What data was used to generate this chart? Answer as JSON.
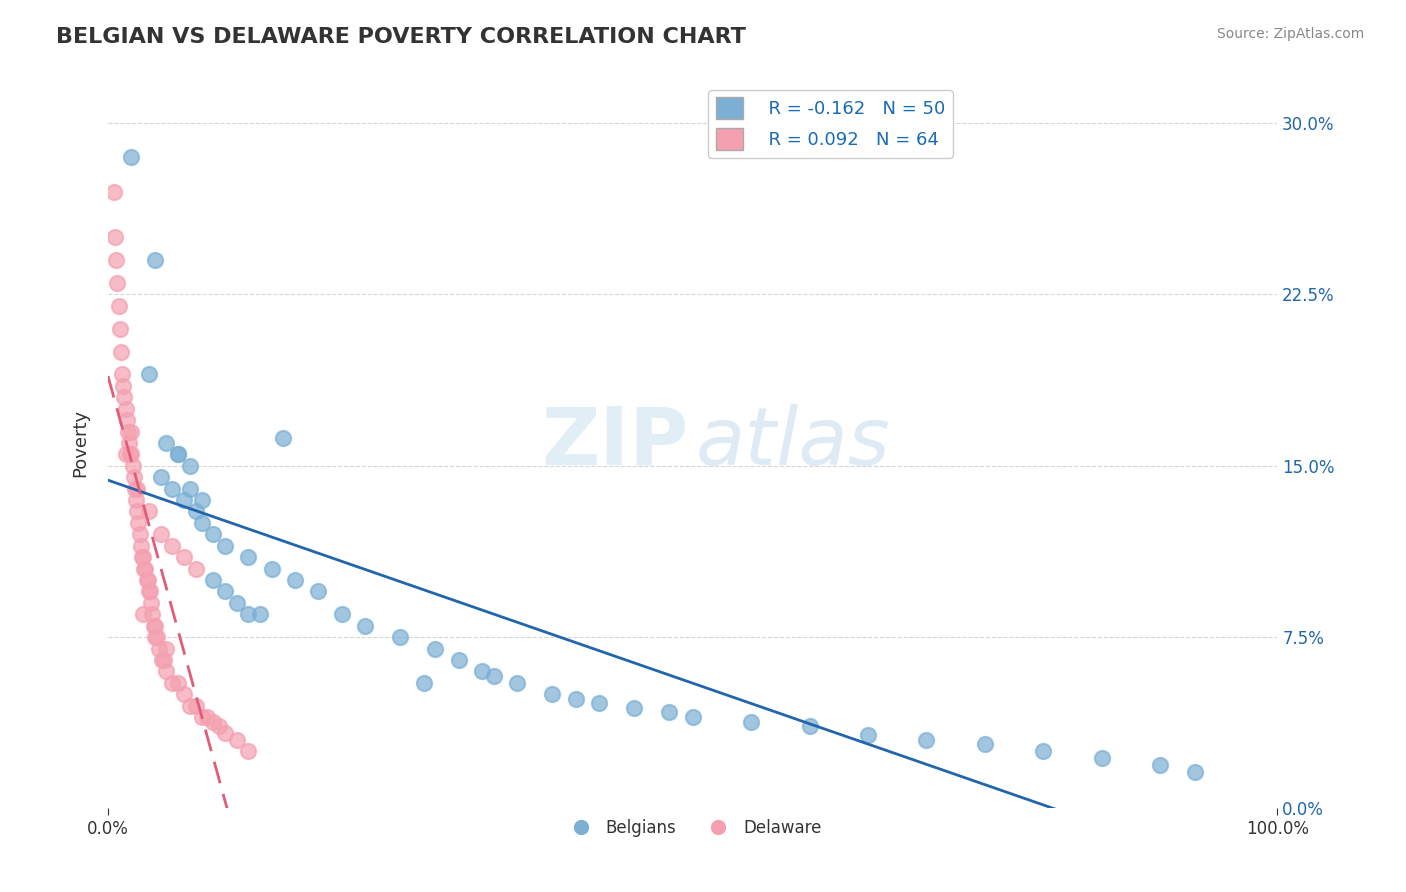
{
  "title": "BELGIAN VS DELAWARE POVERTY CORRELATION CHART",
  "source": "Source: ZipAtlas.com",
  "xlabel": "",
  "ylabel": "Poverty",
  "xlim": [
    0,
    1
  ],
  "ylim": [
    0,
    0.32
  ],
  "yticks": [
    0.0,
    0.075,
    0.15,
    0.225,
    0.3
  ],
  "ytick_labels": [
    "0.0%",
    "7.5%",
    "15.0%",
    "22.5%",
    "30.0%"
  ],
  "xticks": [
    0.0,
    1.0
  ],
  "xtick_labels": [
    "0.0%",
    "100.0%"
  ],
  "blue_color": "#7bafd4",
  "pink_color": "#f4a0b0",
  "blue_line_color": "#2166ac",
  "pink_line_color": "#e05c7a",
  "R_blue": -0.162,
  "N_blue": 50,
  "R_pink": 0.092,
  "N_pink": 64,
  "legend_label_blue": "Belgians",
  "legend_label_pink": "Delaware",
  "title_fontsize": 16,
  "blue_x": [
    0.02,
    0.04,
    0.035,
    0.05,
    0.06,
    0.07,
    0.045,
    0.055,
    0.065,
    0.075,
    0.08,
    0.09,
    0.1,
    0.12,
    0.14,
    0.16,
    0.06,
    0.07,
    0.08,
    0.09,
    0.1,
    0.11,
    0.12,
    0.13,
    0.2,
    0.22,
    0.25,
    0.28,
    0.3,
    0.32,
    0.35,
    0.38,
    0.4,
    0.42,
    0.45,
    0.48,
    0.5,
    0.55,
    0.6,
    0.65,
    0.7,
    0.75,
    0.8,
    0.85,
    0.9,
    0.93,
    0.33,
    0.18,
    0.27,
    0.15
  ],
  "blue_y": [
    0.285,
    0.24,
    0.19,
    0.16,
    0.155,
    0.15,
    0.145,
    0.14,
    0.135,
    0.13,
    0.125,
    0.12,
    0.115,
    0.11,
    0.105,
    0.1,
    0.155,
    0.14,
    0.135,
    0.1,
    0.095,
    0.09,
    0.085,
    0.085,
    0.085,
    0.08,
    0.075,
    0.07,
    0.065,
    0.06,
    0.055,
    0.05,
    0.048,
    0.046,
    0.044,
    0.042,
    0.04,
    0.038,
    0.036,
    0.032,
    0.03,
    0.028,
    0.025,
    0.022,
    0.019,
    0.016,
    0.058,
    0.095,
    0.055,
    0.162
  ],
  "pink_x": [
    0.005,
    0.006,
    0.007,
    0.008,
    0.009,
    0.01,
    0.011,
    0.012,
    0.013,
    0.014,
    0.015,
    0.016,
    0.017,
    0.018,
    0.019,
    0.02,
    0.021,
    0.022,
    0.023,
    0.024,
    0.025,
    0.026,
    0.027,
    0.028,
    0.029,
    0.03,
    0.031,
    0.032,
    0.033,
    0.034,
    0.035,
    0.036,
    0.037,
    0.038,
    0.039,
    0.04,
    0.042,
    0.044,
    0.046,
    0.048,
    0.05,
    0.055,
    0.06,
    0.065,
    0.07,
    0.075,
    0.08,
    0.085,
    0.09,
    0.095,
    0.1,
    0.11,
    0.12,
    0.03,
    0.04,
    0.05,
    0.02,
    0.015,
    0.025,
    0.035,
    0.045,
    0.055,
    0.065,
    0.075
  ],
  "pink_y": [
    0.27,
    0.25,
    0.24,
    0.23,
    0.22,
    0.21,
    0.2,
    0.19,
    0.185,
    0.18,
    0.175,
    0.17,
    0.165,
    0.16,
    0.155,
    0.155,
    0.15,
    0.145,
    0.14,
    0.135,
    0.13,
    0.125,
    0.12,
    0.115,
    0.11,
    0.11,
    0.105,
    0.105,
    0.1,
    0.1,
    0.095,
    0.095,
    0.09,
    0.085,
    0.08,
    0.075,
    0.075,
    0.07,
    0.065,
    0.065,
    0.06,
    0.055,
    0.055,
    0.05,
    0.045,
    0.045,
    0.04,
    0.04,
    0.038,
    0.036,
    0.033,
    0.03,
    0.025,
    0.085,
    0.08,
    0.07,
    0.165,
    0.155,
    0.14,
    0.13,
    0.12,
    0.115,
    0.11,
    0.105
  ]
}
